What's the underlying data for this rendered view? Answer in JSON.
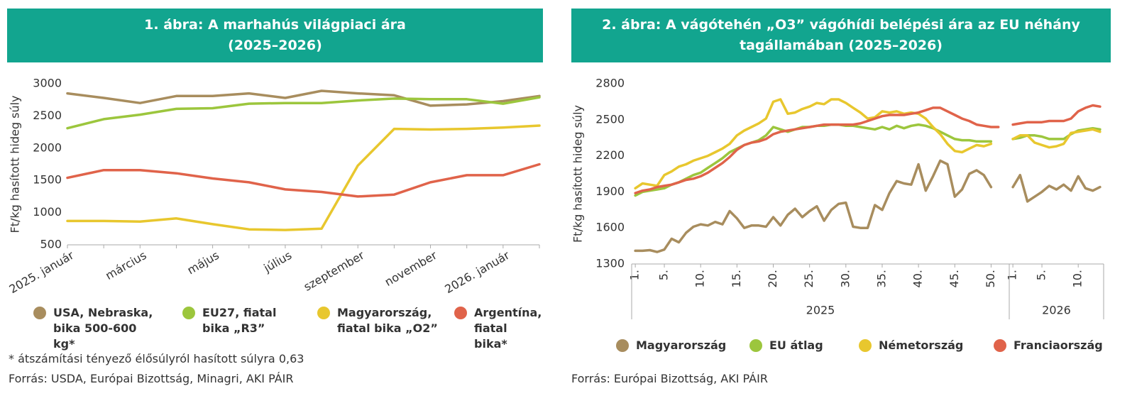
{
  "chart_data": [
    {
      "type": "line",
      "title": "1. ábra: A marhahús világpiaci ára (2025–2026)",
      "y_label": "Ft/kg hasított hideg súly",
      "categories": [
        "2025. január",
        null,
        "március",
        null,
        "május",
        null,
        "július",
        null,
        "szeptember",
        null,
        "november",
        null,
        "2026. január",
        null
      ],
      "ylim": [
        500,
        3000
      ],
      "yticks": [
        500,
        1000,
        1500,
        2000,
        2500,
        3000
      ],
      "series": [
        {
          "name": "USA, Nebraska, bika 500-600 kg*",
          "color": "#a88d5e",
          "values": [
            2850,
            2780,
            2700,
            2810,
            2810,
            2850,
            2780,
            2890,
            2850,
            2820,
            2660,
            2680,
            2730,
            2810
          ]
        },
        {
          "name": "EU27, fiatal bika „R3”",
          "color": "#9cc63d",
          "values": [
            2310,
            2450,
            2520,
            2610,
            2620,
            2690,
            2700,
            2700,
            2740,
            2770,
            2760,
            2760,
            2690,
            2790
          ]
        },
        {
          "name": "Magyarország, fiatal bika „O2”",
          "color": "#e8c72e",
          "values": [
            870,
            870,
            860,
            910,
            820,
            740,
            730,
            750,
            1730,
            2300,
            2290,
            2300,
            2320,
            2350
          ]
        },
        {
          "name": "Argentína, fiatal bika*",
          "color": "#e0634a",
          "values": [
            1540,
            1660,
            1660,
            1610,
            1530,
            1470,
            1360,
            1320,
            1250,
            1280,
            1470,
            1580,
            1580,
            1750
          ]
        }
      ],
      "note": "* átszámítási tényező élősúlyról hasított súlyra 0,63",
      "source": "Forrás: USDA, Európai Bizottság, Minagri, AKI PÁIR"
    },
    {
      "type": "line",
      "title": "2. ábra: A vágótehén „O3” vágóhídi belépési ára az EU néhány tagállamában (2025–2026)",
      "y_label": "Ft/kg hasított hideg súly",
      "categories": [
        "1.",
        null,
        null,
        null,
        "5.",
        null,
        null,
        null,
        null,
        "10.",
        null,
        null,
        null,
        null,
        "15.",
        null,
        null,
        null,
        null,
        "20.",
        null,
        null,
        null,
        null,
        "25.",
        null,
        null,
        null,
        null,
        "30.",
        null,
        null,
        null,
        null,
        "35.",
        null,
        null,
        null,
        null,
        "40.",
        null,
        null,
        null,
        null,
        "45.",
        null,
        null,
        null,
        null,
        "50.",
        null,
        null,
        "1.",
        null,
        null,
        null,
        "5.",
        null,
        null,
        null,
        null,
        "10.",
        null,
        null,
        null
      ],
      "x_groups": [
        {
          "label": "2025",
          "count": 52
        },
        {
          "label": "2026",
          "count": 13
        }
      ],
      "ylim": [
        1300,
        2800
      ],
      "yticks": [
        1300,
        1600,
        1900,
        2200,
        2500,
        2800
      ],
      "series": [
        {
          "name": "Magyarország",
          "color": "#a88d5e",
          "values": [
            1410,
            1410,
            1415,
            1400,
            1420,
            1510,
            1480,
            1560,
            1610,
            1630,
            1620,
            1650,
            1630,
            1740,
            1680,
            1600,
            1620,
            1620,
            1610,
            1690,
            1620,
            1710,
            1760,
            1690,
            1740,
            1780,
            1660,
            1750,
            1800,
            1810,
            1610,
            1600,
            1600,
            1790,
            1750,
            1890,
            1990,
            1970,
            1960,
            2130,
            1910,
            2030,
            2160,
            2130,
            1860,
            1920,
            2050,
            2080,
            2040,
            1940,
            null,
            null,
            1940,
            2040,
            1820,
            1860,
            1900,
            1950,
            1920,
            1960,
            1910,
            2030,
            1930,
            1910,
            1940
          ]
        },
        {
          "name": "EU átlag",
          "color": "#9cc63d",
          "values": [
            1870,
            1900,
            1910,
            1920,
            1930,
            1960,
            1980,
            2010,
            2040,
            2060,
            2100,
            2140,
            2180,
            2230,
            2260,
            2290,
            2310,
            2330,
            2370,
            2440,
            2420,
            2400,
            2420,
            2440,
            2440,
            2450,
            2450,
            2460,
            2460,
            2450,
            2450,
            2440,
            2430,
            2420,
            2440,
            2420,
            2450,
            2430,
            2450,
            2460,
            2450,
            2430,
            2400,
            2370,
            2340,
            2330,
            2330,
            2320,
            2320,
            2320,
            null,
            null,
            2340,
            2350,
            2370,
            2370,
            2360,
            2340,
            2340,
            2340,
            2380,
            2410,
            2420,
            2430,
            2420
          ]
        },
        {
          "name": "Németország",
          "color": "#e8c72e",
          "values": [
            1930,
            1970,
            1960,
            1950,
            2040,
            2070,
            2110,
            2130,
            2160,
            2180,
            2200,
            2230,
            2260,
            2300,
            2370,
            2410,
            2440,
            2470,
            2510,
            2650,
            2670,
            2550,
            2560,
            2590,
            2610,
            2640,
            2630,
            2670,
            2670,
            2640,
            2600,
            2560,
            2510,
            2520,
            2570,
            2560,
            2570,
            2550,
            2560,
            2550,
            2510,
            2440,
            2380,
            2300,
            2240,
            2230,
            2260,
            2290,
            2280,
            2300,
            null,
            null,
            2340,
            2370,
            2370,
            2310,
            2290,
            2270,
            2280,
            2300,
            2390,
            2400,
            2410,
            2420,
            2400
          ]
        },
        {
          "name": "Franciaország",
          "color": "#e0634a",
          "values": [
            1890,
            1910,
            1920,
            1940,
            1950,
            1960,
            1980,
            2000,
            2010,
            2030,
            2060,
            2100,
            2140,
            2190,
            2250,
            2290,
            2310,
            2320,
            2340,
            2380,
            2400,
            2410,
            2420,
            2430,
            2440,
            2450,
            2460,
            2460,
            2460,
            2460,
            2460,
            2470,
            2490,
            2510,
            2530,
            2540,
            2540,
            2540,
            2550,
            2560,
            2580,
            2600,
            2600,
            2570,
            2540,
            2510,
            2490,
            2460,
            2450,
            2440,
            2440,
            null,
            2460,
            2470,
            2480,
            2480,
            2480,
            2490,
            2490,
            2490,
            2510,
            2570,
            2600,
            2620,
            2610
          ]
        }
      ],
      "source": "Forrás: Európai Bizottság, AKI PÁIR"
    }
  ]
}
